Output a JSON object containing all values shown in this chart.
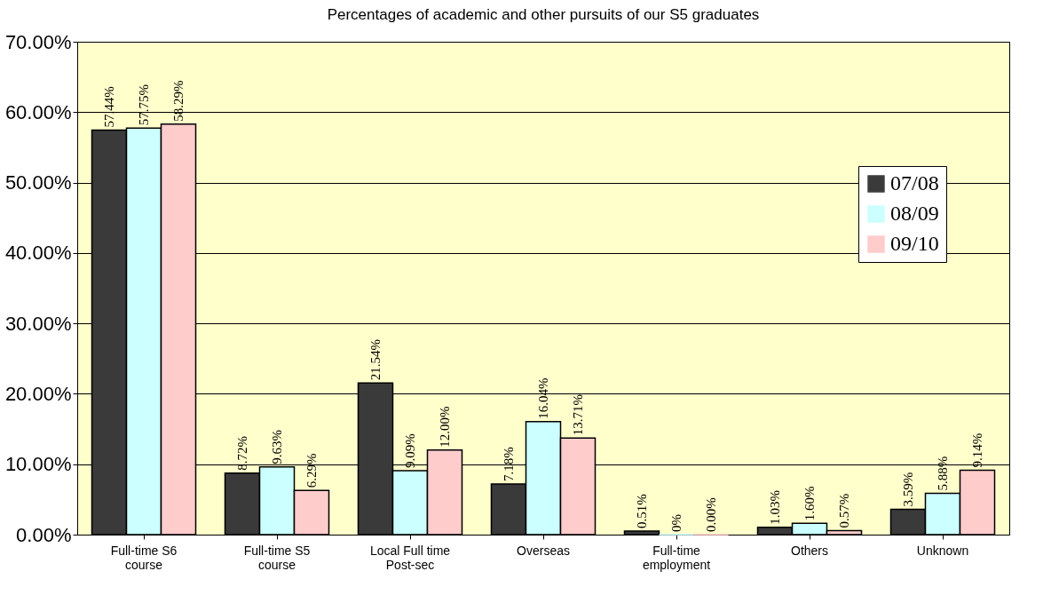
{
  "chart_data": {
    "type": "bar",
    "title": "Percentages of academic and other pursuits of our S5 graduates",
    "categories": [
      "Full-time S6\ncourse",
      "Full-time S5\ncourse",
      "Local Full time\nPost-sec",
      "Overseas",
      "Full-time\nemployment",
      "Others",
      "Unknown"
    ],
    "series": [
      {
        "name": "07/08",
        "color": "#3a3a3a",
        "values": [
          57.44,
          8.72,
          21.54,
          7.18,
          0.51,
          1.03,
          3.59
        ],
        "value_labels": [
          "57.44%",
          "8.72%",
          "21.54%",
          "7.18%",
          "0.51%",
          "1.03%",
          "3.59%"
        ]
      },
      {
        "name": "08/09",
        "color": "#ccffff",
        "values": [
          57.75,
          9.63,
          9.09,
          16.04,
          0,
          1.6,
          5.88
        ],
        "value_labels": [
          "57.75%",
          "9.63%",
          "9.09%",
          "16.04%",
          "0%",
          "1.60%",
          "5.88%"
        ]
      },
      {
        "name": "09/10",
        "color": "#ffcccc",
        "values": [
          58.29,
          6.29,
          12.0,
          13.71,
          0.0,
          0.57,
          9.14
        ],
        "value_labels": [
          "58.29%",
          "6.29%",
          "12.00%",
          "13.71%",
          "0.00%",
          "0.57%",
          "9.14%"
        ]
      }
    ],
    "ylim": [
      0,
      70
    ],
    "yticks": [
      {
        "value": 0,
        "label": "0.00%"
      },
      {
        "value": 10,
        "label": "10.00%"
      },
      {
        "value": 20,
        "label": "20.00%"
      },
      {
        "value": 30,
        "label": "30.00%"
      },
      {
        "value": 40,
        "label": "40.00%"
      },
      {
        "value": 50,
        "label": "50.00%"
      },
      {
        "value": 60,
        "label": "60.00%"
      },
      {
        "value": 70,
        "label": "70.00%"
      }
    ],
    "grid": "y",
    "legend": "right"
  }
}
